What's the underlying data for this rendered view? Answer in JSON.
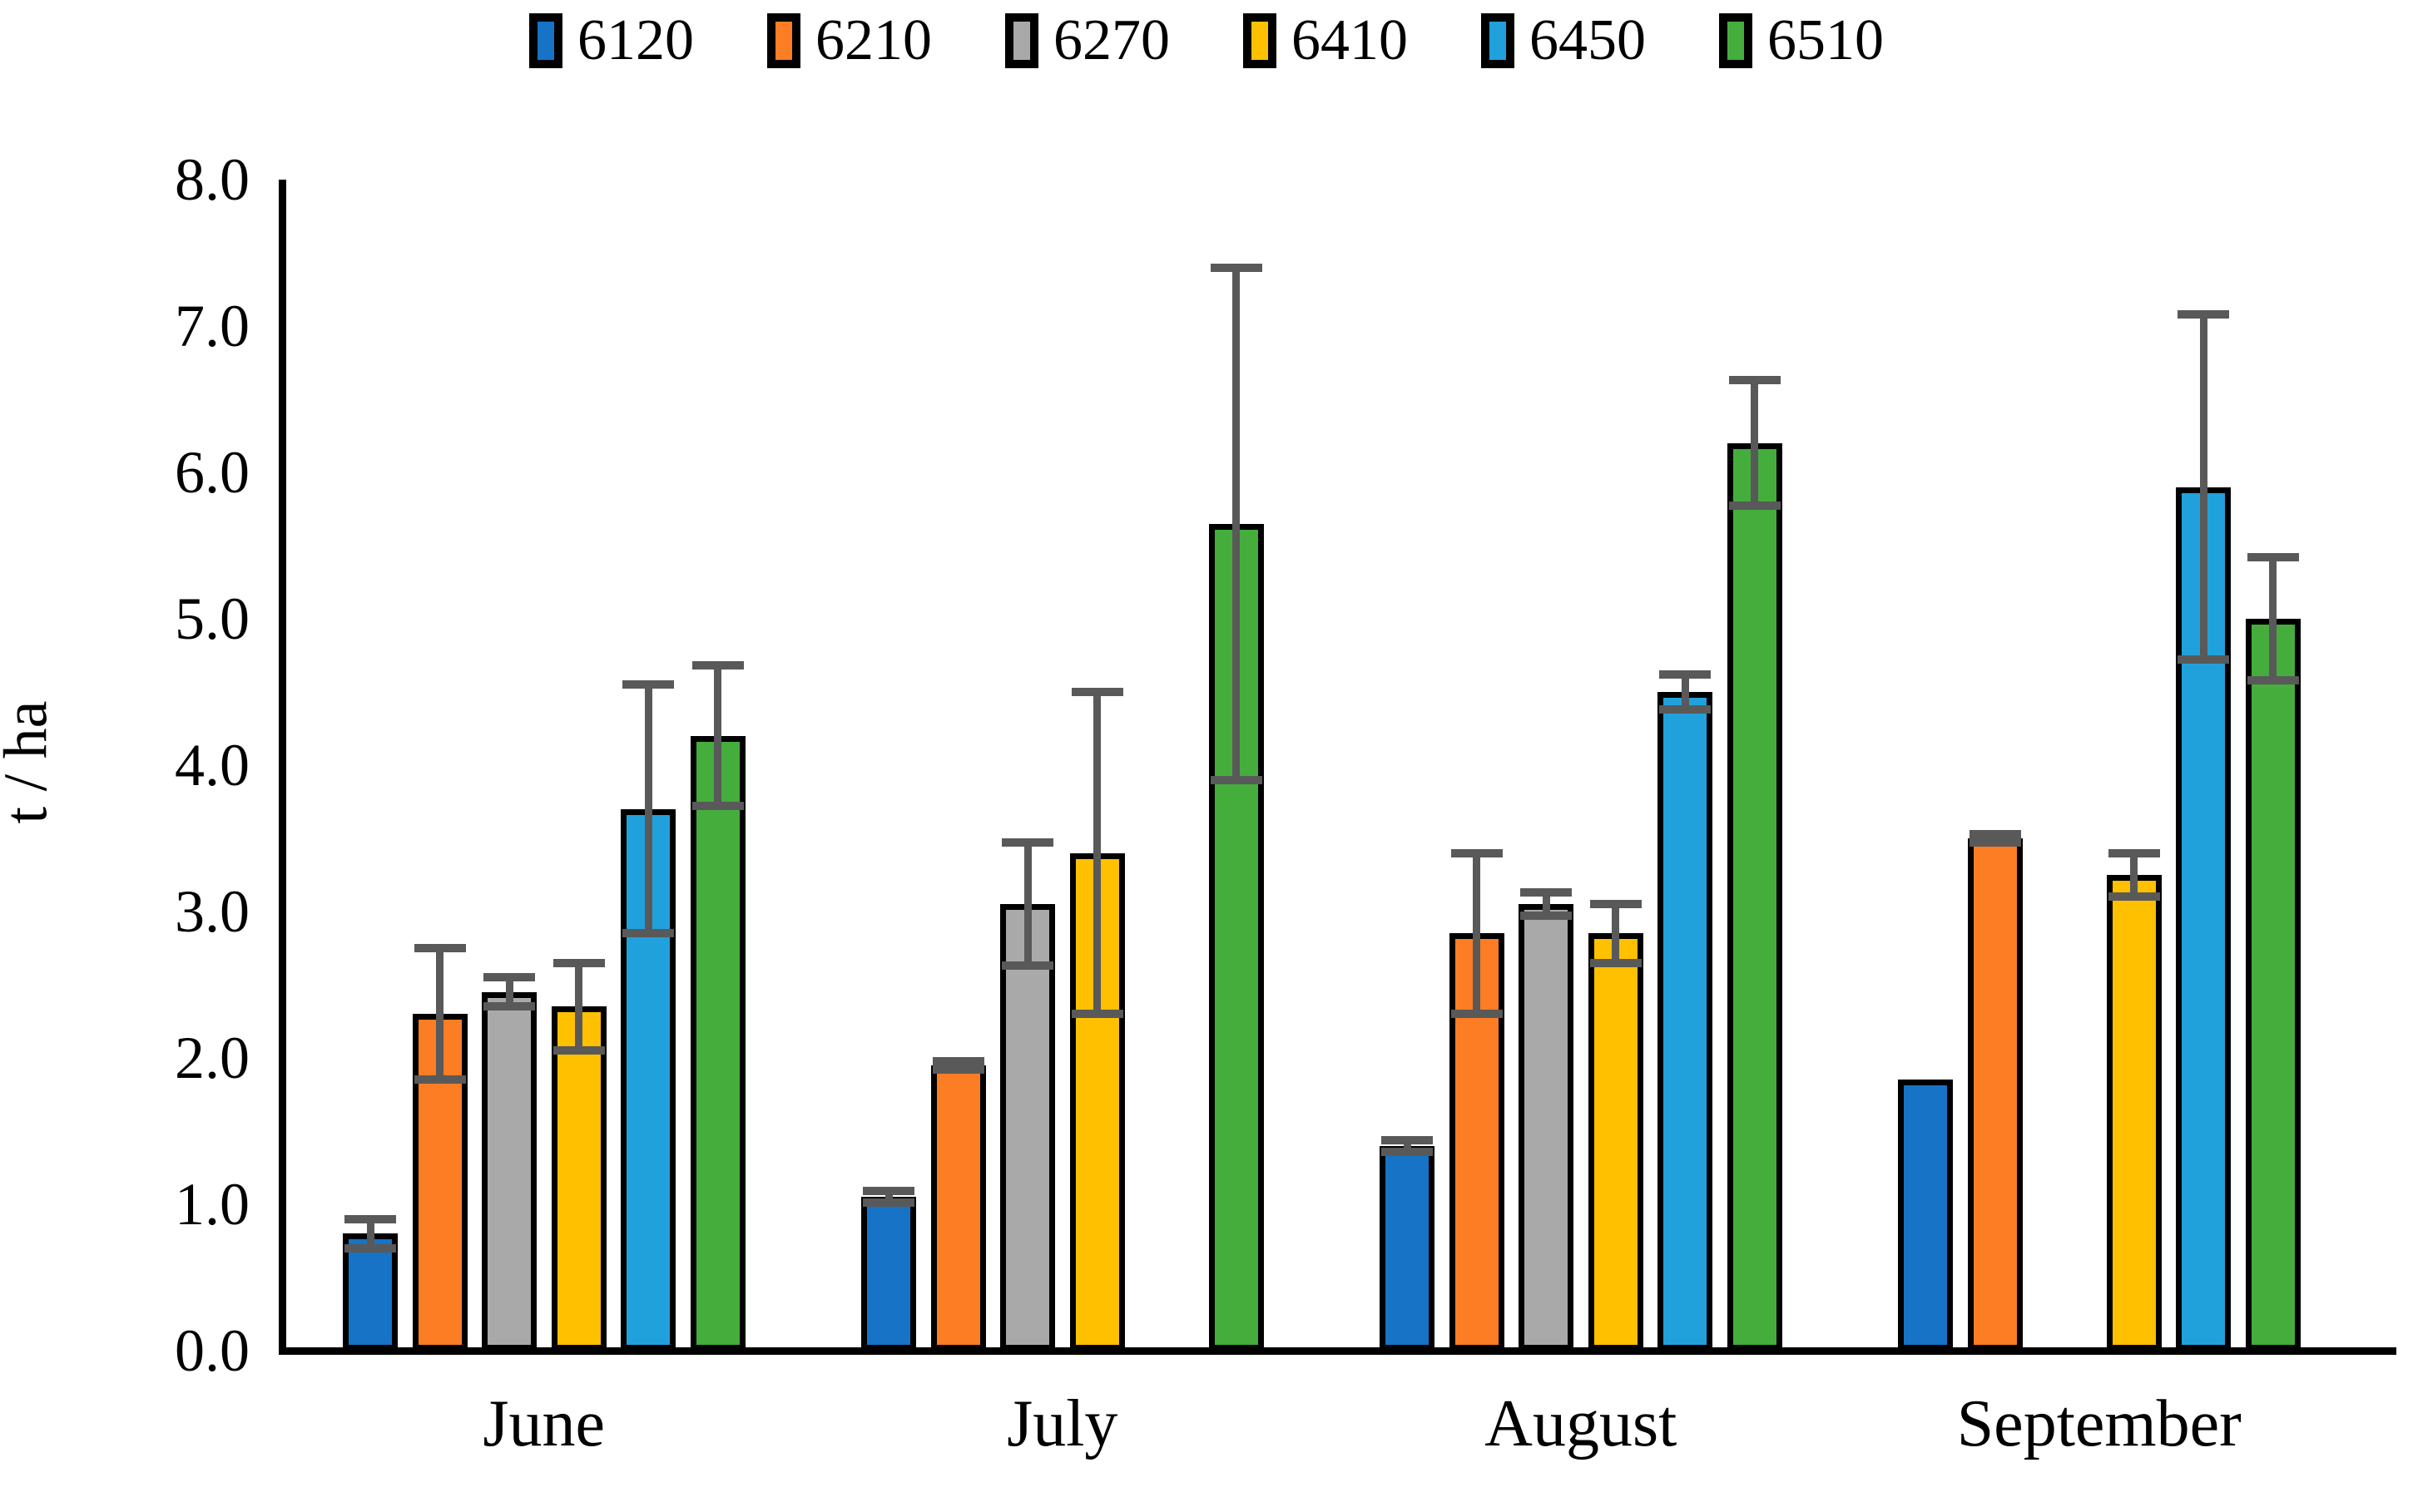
{
  "chart_data": {
    "type": "bar",
    "title": "",
    "xlabel": "",
    "ylabel": "t / ha",
    "ylim": [
      0,
      8
    ],
    "ytick_step": 1.0,
    "ytick_labels": [
      "0.0",
      "1.0",
      "2.0",
      "3.0",
      "4.0",
      "5.0",
      "6.0",
      "7.0",
      "8.0"
    ],
    "grid": false,
    "legend_position": "top-center",
    "categories": [
      "June",
      "July",
      "August",
      "September"
    ],
    "series": [
      {
        "name": "6120",
        "color": "#1673C5",
        "values": [
          0.8,
          1.05,
          1.4,
          1.85
        ],
        "errors": [
          0.1,
          0.04,
          0.04,
          0
        ]
      },
      {
        "name": "6210",
        "color": "#FC7D23",
        "values": [
          2.3,
          1.95,
          2.85,
          3.5
        ],
        "errors": [
          0.45,
          0.03,
          0.55,
          0.03
        ]
      },
      {
        "name": "6270",
        "color": "#A9A9A9",
        "values": [
          2.45,
          3.05,
          3.05,
          null
        ],
        "errors": [
          0.1,
          0.42,
          0.08,
          null
        ]
      },
      {
        "name": "6410",
        "color": "#FFC000",
        "values": [
          2.35,
          3.4,
          2.85,
          3.25
        ],
        "errors": [
          0.3,
          1.1,
          0.2,
          0.15
        ]
      },
      {
        "name": "6450",
        "color": "#21A1DC",
        "values": [
          3.7,
          null,
          4.5,
          5.9
        ],
        "errors": [
          0.85,
          null,
          0.12,
          1.18
        ]
      },
      {
        "name": "6510",
        "color": "#44AD3C",
        "values": [
          4.2,
          5.65,
          6.2,
          5.0
        ],
        "errors": [
          0.48,
          1.75,
          0.43,
          0.42
        ]
      }
    ],
    "error_bar_color": "#595959",
    "bar_border_color": "#000000",
    "axis_color": "#000000"
  }
}
